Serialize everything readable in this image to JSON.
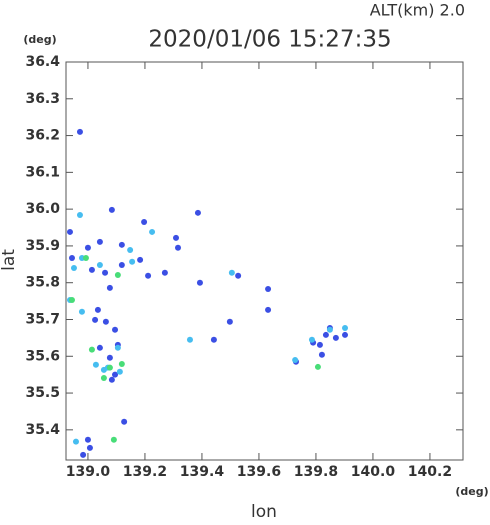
{
  "chart_data": {
    "type": "scatter",
    "title": "2020/01/06 15:27:35",
    "subtitle": "ALT(km)  2.0",
    "x_label": "lon",
    "y_label": "lat",
    "x_unit": "(deg)",
    "y_unit": "(deg)",
    "xlim": [
      138.923,
      140.316
    ],
    "ylim": [
      35.318,
      36.4
    ],
    "xticks": [
      {
        "value": 139,
        "label": "139.0"
      },
      139.2,
      139.4,
      139.6,
      139.8,
      {
        "value": 140,
        "label": "140.0"
      },
      140.2
    ],
    "yticks": [
      35.4,
      35.5,
      35.6,
      35.7,
      35.8,
      35.9,
      {
        "value": 36,
        "label": "36.0"
      },
      36.1,
      36.2,
      36.3,
      36.4
    ],
    "grid": false,
    "series": [
      {
        "color": "#3b4fe4",
        "x": [
          138.972,
          139.084,
          138.937,
          139.0,
          139.042,
          139.014,
          139.119,
          139.211,
          139.27,
          139.309,
          139.316,
          139.386,
          138.944,
          139.119,
          139.183,
          139.06,
          139.077,
          139.035,
          139.025,
          139.063,
          139.095,
          139.105,
          139.042,
          139.077,
          139.095,
          139.084,
          139.127,
          139.0,
          139.007,
          138.983,
          139.197,
          139.527,
          139.632,
          139.632,
          139.498,
          139.442,
          139.814,
          139.835,
          139.87,
          139.849,
          139.902,
          139.73,
          139.821,
          139.79,
          139.393
        ],
        "y": [
          36.21,
          35.998,
          35.938,
          35.895,
          35.911,
          35.835,
          35.903,
          35.819,
          35.827,
          35.922,
          35.895,
          35.99,
          35.867,
          35.848,
          35.862,
          35.827,
          35.786,
          35.726,
          35.699,
          35.694,
          35.672,
          35.631,
          35.623,
          35.596,
          35.55,
          35.536,
          35.422,
          35.373,
          35.351,
          35.332,
          35.965,
          35.819,
          35.783,
          35.726,
          35.694,
          35.645,
          35.631,
          35.658,
          35.65,
          35.677,
          35.658,
          35.585,
          35.604,
          35.637,
          35.8
        ]
      },
      {
        "color": "#46bdf0",
        "x": [
          138.937,
          138.979,
          138.951,
          138.979,
          139.042,
          139.155,
          139.148,
          139.225,
          139.105,
          139.112,
          139.056,
          139.07,
          138.958,
          139.028,
          139.902,
          139.849,
          139.786,
          139.727,
          139.358,
          139.505,
          138.972
        ],
        "y": [
          35.753,
          35.721,
          35.84,
          35.867,
          35.848,
          35.857,
          35.889,
          35.938,
          35.623,
          35.558,
          35.563,
          35.569,
          35.368,
          35.577,
          35.677,
          35.672,
          35.645,
          35.59,
          35.645,
          35.827,
          35.984
        ]
      },
      {
        "color": "#48dd78",
        "x": [
          138.944,
          139.014,
          139.077,
          138.993,
          139.105,
          139.056,
          139.091,
          139.807,
          139.119
        ],
        "y": [
          35.753,
          35.618,
          35.569,
          35.867,
          35.821,
          35.541,
          35.373,
          35.571,
          35.579
        ]
      }
    ]
  }
}
